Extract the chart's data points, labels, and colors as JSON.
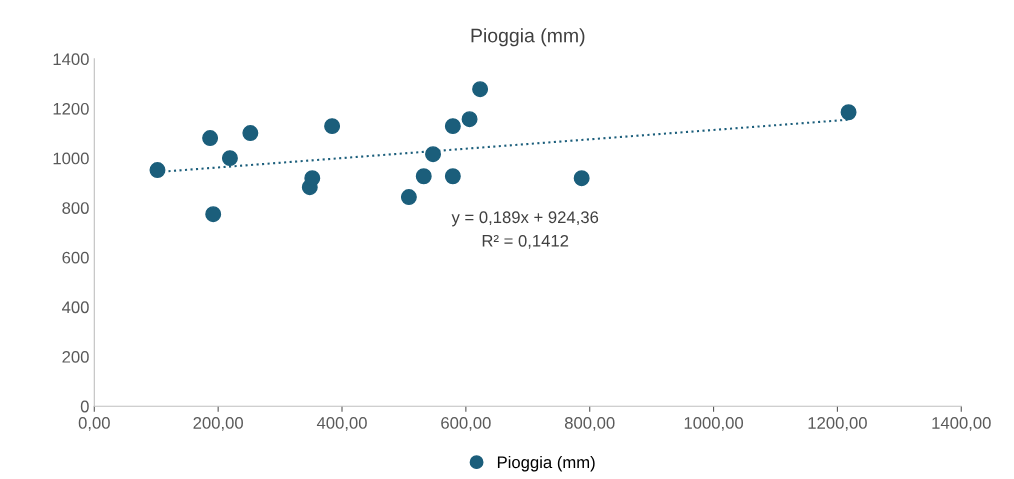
{
  "chart_data": {
    "type": "scatter",
    "title": "Pioggia (mm)",
    "series": [
      {
        "name": "Pioggia (mm)",
        "color": "#1b5e7b",
        "marker": "circle",
        "x": [
          102,
          187,
          192,
          219,
          252,
          348,
          352,
          384,
          508,
          532,
          547,
          579,
          579,
          606,
          623,
          787,
          1218
        ],
        "values": [
          952,
          1081,
          774,
          1000,
          1101,
          883,
          919,
          1129,
          843,
          927,
          1016,
          1129,
          927,
          1157,
          1278,
          919,
          1185
        ]
      },
      {
        "type": "line",
        "color": "#1b5e7b",
        "line_style": "dotted",
        "marker": "none",
        "x": [
          102,
          1218
        ],
        "values": [
          944,
          1155
        ]
      }
    ],
    "annotations": [
      "y = 0,189x + 924,36",
      "R² = 0,1412"
    ],
    "xlim": [
      0,
      1400
    ],
    "xticks": [
      {
        "value": 0,
        "label": "0,00"
      },
      {
        "value": 200,
        "label": "200,00"
      },
      {
        "value": 400,
        "label": "400,00"
      },
      {
        "value": 600,
        "label": "600,00"
      },
      {
        "value": 800,
        "label": "800,00"
      },
      {
        "value": 1000,
        "label": "1000,00"
      },
      {
        "value": 1200,
        "label": "1200,00"
      },
      {
        "value": 1400,
        "label": "1400,00"
      }
    ],
    "ylim": [
      0,
      1400
    ],
    "yticks": [
      0,
      200,
      400,
      600,
      800,
      1000,
      1200,
      1400
    ],
    "grid": false,
    "legend": "bottom"
  }
}
